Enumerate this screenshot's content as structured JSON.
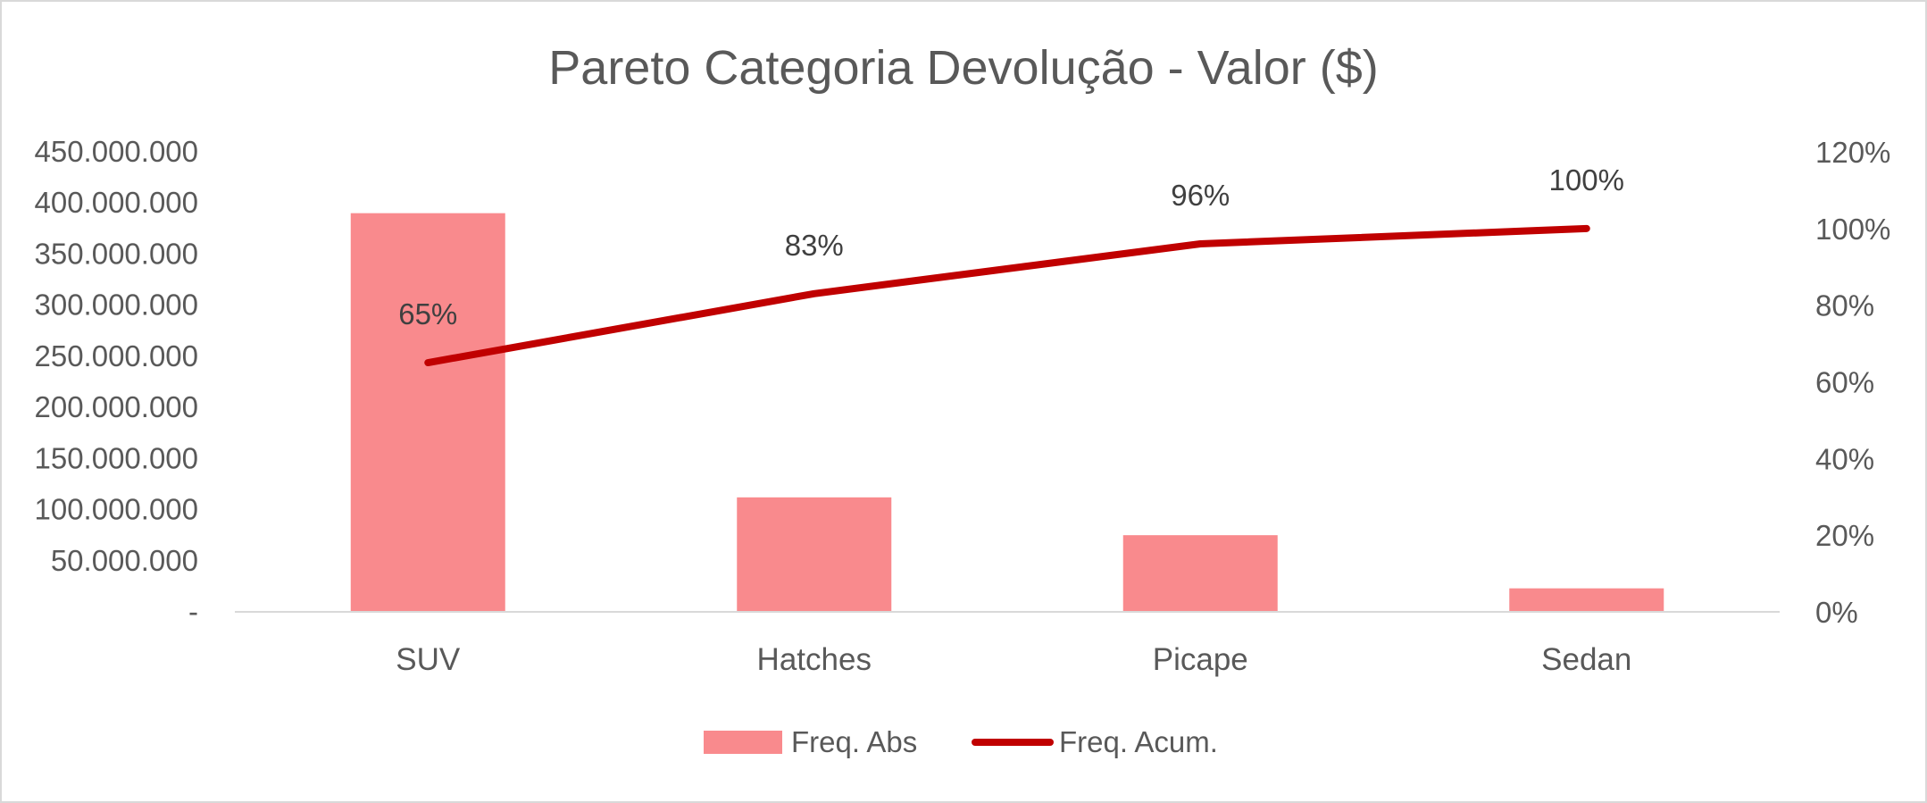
{
  "chart_data": {
    "type": "bar",
    "title": "Pareto Categoria Devolução - Valor ($)",
    "categories": [
      "SUV",
      "Hatches",
      "Picape",
      "Sedan"
    ],
    "series": [
      {
        "name": "Freq. Abs",
        "type": "bar",
        "axis": "left",
        "color": "#f98a8d",
        "values": [
          390000000,
          112000000,
          75000000,
          23000000
        ]
      },
      {
        "name": "Freq. Acum.",
        "type": "line",
        "axis": "right",
        "color": "#c00000",
        "values": [
          0.65,
          0.83,
          0.96,
          1.0
        ],
        "labels": [
          "65%",
          "83%",
          "96%",
          "100%"
        ]
      }
    ],
    "y_left": {
      "range": [
        0,
        450000000
      ],
      "ticks": [
        0,
        50000000,
        100000000,
        150000000,
        200000000,
        250000000,
        300000000,
        350000000,
        400000000,
        450000000
      ],
      "tick_labels": [
        "-",
        "50.000.000",
        "100.000.000",
        "150.000.000",
        "200.000.000",
        "250.000.000",
        "300.000.000",
        "350.000.000",
        "400.000.000",
        "450.000.000"
      ]
    },
    "y_right": {
      "range": [
        0,
        1.2
      ],
      "ticks": [
        0,
        0.2,
        0.4,
        0.6,
        0.8,
        1.0,
        1.2
      ],
      "tick_labels": [
        "0%",
        "20%",
        "40%",
        "60%",
        "80%",
        "100%",
        "120%"
      ]
    },
    "grid": false,
    "legend": "bottom"
  }
}
